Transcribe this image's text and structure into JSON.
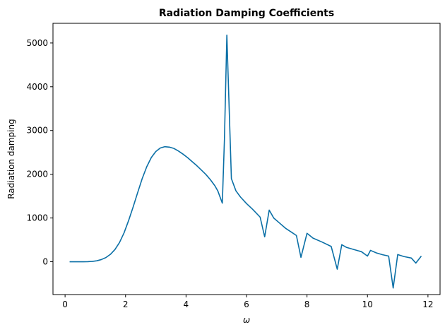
{
  "chart_data": {
    "type": "line",
    "title": "Radiation Damping Coefficients",
    "xlabel": "ω",
    "ylabel": "Radiation damping",
    "xlim": [
      -0.4,
      12.4
    ],
    "ylim": [
      -750,
      5450
    ],
    "xticks": [
      0,
      2,
      4,
      6,
      8,
      10,
      12
    ],
    "yticks": [
      0,
      1000,
      2000,
      3000,
      4000,
      5000
    ],
    "grid": false,
    "line_color": "#0a6fa6",
    "series": [
      {
        "x": [
          0.15,
          0.3,
          0.45,
          0.6,
          0.75,
          0.9,
          1.05,
          1.2,
          1.35,
          1.5,
          1.65,
          1.8,
          1.95,
          2.1,
          2.25,
          2.4,
          2.55,
          2.7,
          2.85,
          3.0,
          3.15,
          3.3,
          3.45,
          3.6,
          3.75,
          3.9,
          4.05,
          4.2,
          4.35,
          4.5,
          4.65,
          4.8,
          4.95,
          5.05,
          5.2,
          5.27,
          5.35,
          5.5,
          5.65,
          5.8,
          6.0,
          6.2,
          6.45,
          6.6,
          6.75,
          6.9,
          7.1,
          7.3,
          7.5,
          7.65,
          7.8,
          8.0,
          8.2,
          8.5,
          8.8,
          9.0,
          9.15,
          9.3,
          9.5,
          9.8,
          10.0,
          10.1,
          10.3,
          10.5,
          10.7,
          10.85,
          11.0,
          11.2,
          11.45,
          11.6,
          11.78
        ],
        "y": [
          0,
          0,
          0,
          0,
          2,
          8,
          22,
          50,
          95,
          170,
          280,
          440,
          660,
          940,
          1250,
          1580,
          1900,
          2170,
          2380,
          2520,
          2600,
          2630,
          2620,
          2590,
          2530,
          2460,
          2380,
          2290,
          2200,
          2100,
          2000,
          1880,
          1740,
          1620,
          1340,
          2800,
          5180,
          1900,
          1620,
          1480,
          1330,
          1200,
          1020,
          570,
          1180,
          1000,
          880,
          760,
          670,
          600,
          100,
          650,
          540,
          450,
          350,
          -170,
          390,
          330,
          290,
          230,
          130,
          260,
          200,
          160,
          130,
          -600,
          165,
          120,
          85,
          -30,
          130
        ]
      }
    ]
  }
}
